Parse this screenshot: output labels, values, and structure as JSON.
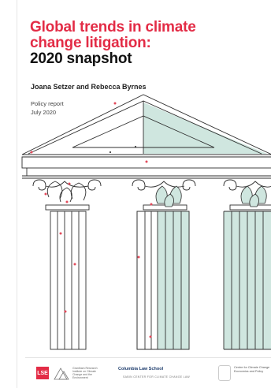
{
  "cover": {
    "title_line1": "Global trends in climate",
    "title_line2": "change litigation:",
    "title_line3": "2020 snapshot",
    "authors": "Joana Setzer and Rebecca Byrnes",
    "report_type": "Policy report",
    "date": "July 2020"
  },
  "footer": {
    "lse": "LSE",
    "grantham": "Grantham Research Institute on Climate Change and the Environment",
    "columbia": "Columbia Law School",
    "sabin": "SABIN CENTER FOR CLIMATE CHANGE LAW",
    "cccep": "Centre for Climate Change Economics and Policy"
  },
  "colors": {
    "title_red": "#e32c46",
    "teal": "#cfe6df",
    "dot_red": "#e24a5b"
  },
  "icons": [
    "temple-illustration",
    "grantham-logo-icon"
  ]
}
